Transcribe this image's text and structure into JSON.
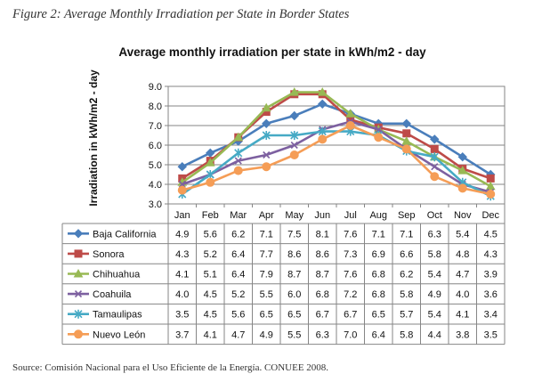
{
  "figure_caption": "Figure 2: Average Monthly Irradiation per State in Border States",
  "source": "Source: Comisión Nacional para el Uso Eficiente de la Energía. CONUEE 2008.",
  "chart_data": {
    "type": "line",
    "title": "Average monthly irradiation per state in kWh/m2 - day",
    "xlabel": "",
    "ylabel": "Irradiation in kWh/m2 - day",
    "ylim": [
      3.0,
      9.0
    ],
    "yticks": [
      "3.0",
      "4.0",
      "5.0",
      "6.0",
      "7.0",
      "8.0",
      "9.0"
    ],
    "grid": true,
    "legend": "data table below plot",
    "categories": [
      "Jan",
      "Feb",
      "Mar",
      "Apr",
      "May",
      "Jun",
      "Jul",
      "Aug",
      "Sep",
      "Oct",
      "Nov",
      "Dec"
    ],
    "series": [
      {
        "name": "Baja California",
        "color": "#4a7ebb",
        "marker": "diamond",
        "values": [
          4.9,
          5.6,
          6.2,
          7.1,
          7.5,
          8.1,
          7.6,
          7.1,
          7.1,
          6.3,
          5.4,
          4.5
        ]
      },
      {
        "name": "Sonora",
        "color": "#be4b48",
        "marker": "square",
        "values": [
          4.3,
          5.2,
          6.4,
          7.7,
          8.6,
          8.6,
          7.3,
          6.9,
          6.6,
          5.8,
          4.8,
          4.3
        ]
      },
      {
        "name": "Chihuahua",
        "color": "#98b954",
        "marker": "triangle",
        "values": [
          4.1,
          5.1,
          6.4,
          7.9,
          8.7,
          8.7,
          7.6,
          6.8,
          6.2,
          5.4,
          4.7,
          3.9
        ]
      },
      {
        "name": "Coahuila",
        "color": "#7d60a0",
        "marker": "x",
        "values": [
          4.0,
          4.5,
          5.2,
          5.5,
          6.0,
          6.8,
          7.2,
          6.8,
          5.8,
          4.9,
          4.0,
          3.6
        ]
      },
      {
        "name": "Tamaulipas",
        "color": "#46aac5",
        "marker": "star",
        "values": [
          3.5,
          4.5,
          5.6,
          6.5,
          6.5,
          6.7,
          6.7,
          6.5,
          5.7,
          5.4,
          4.1,
          3.4
        ]
      },
      {
        "name": "Nuevo León",
        "color": "#f59d56",
        "marker": "circle",
        "values": [
          3.7,
          4.1,
          4.7,
          4.9,
          5.5,
          6.3,
          7.0,
          6.4,
          5.8,
          4.4,
          3.8,
          3.5
        ]
      }
    ]
  }
}
